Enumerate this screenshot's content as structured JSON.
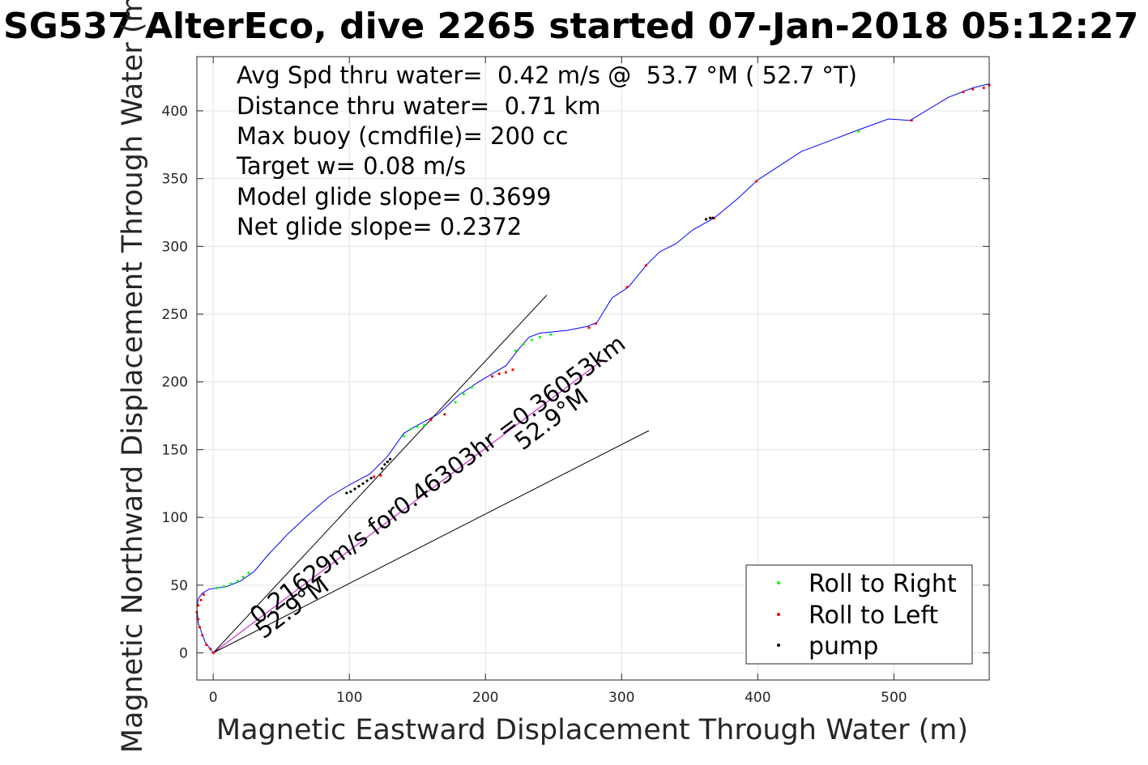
{
  "chart_data": {
    "type": "line",
    "title": "SG537 AlterEco, dive 2265 started 07-Jan-2018 05:12:27",
    "xlabel": "Magnetic Eastward Displacement Through Water (m)",
    "ylabel": "Magnetic Northward Displacement Through Water (m)",
    "xlim": [
      -12,
      570
    ],
    "ylim": [
      -20,
      440
    ],
    "xticks": [
      "0",
      "100",
      "200",
      "300",
      "400",
      "500"
    ],
    "xtick_values": [
      0,
      100,
      200,
      300,
      400,
      500
    ],
    "yticks": [
      "0",
      "50",
      "100",
      "150",
      "200",
      "250",
      "300",
      "350",
      "400"
    ],
    "ytick_values": [
      0,
      50,
      100,
      150,
      200,
      250,
      300,
      350,
      400
    ],
    "grid": true,
    "stats": [
      "Avg Spd thru water=  0.42 m/s @  53.7 °M ( 52.7 °T)",
      "Distance thru water=  0.71 km",
      "Max buoy (cmdfile)= 200 cc",
      "Target w= 0.08 m/s",
      "Model glide slope= 0.3699",
      "Net glide slope= 0.2372"
    ],
    "annotations": {
      "vector_label": "0.21629m/s for0.46303hr =0.36053km",
      "heading_label_1": "52.9°M",
      "heading_label_2": "52.9°M"
    },
    "legend": {
      "placement": "bottom-right",
      "entries": [
        {
          "label": "Roll to Right",
          "color": "#00ff00"
        },
        {
          "label": "Roll to Left",
          "color": "#ff0000"
        },
        {
          "label": "pump",
          "color": "#000000"
        }
      ]
    },
    "series": [
      {
        "color": "#0000ff",
        "style": "line",
        "x": [
          0,
          -6,
          -11,
          -12,
          -11,
          -8,
          -3,
          10,
          20,
          30,
          40,
          55,
          70,
          85,
          100,
          115,
          128,
          140,
          150,
          165,
          180,
          195,
          215,
          225,
          232,
          240,
          260,
          275,
          282,
          293,
          305,
          318,
          328,
          340,
          352,
          368,
          385,
          400,
          432,
          474,
          496,
          512,
          540,
          558,
          570
        ],
        "y": [
          0,
          8,
          22,
          33,
          40,
          44,
          47,
          49,
          53,
          60,
          72,
          88,
          102,
          115,
          124,
          132,
          145,
          162,
          168,
          176,
          190,
          200,
          212,
          225,
          233,
          236,
          238,
          241,
          244,
          262,
          270,
          286,
          296,
          302,
          312,
          321,
          335,
          349,
          370,
          386,
          394,
          393,
          410,
          417,
          420
        ]
      },
      {
        "color": "#cc00cc",
        "style": "line",
        "x": [
          0,
          286
        ],
        "y": [
          0,
          216
        ]
      },
      {
        "color": "#000000",
        "style": "line",
        "x": [
          0,
          245
        ],
        "y": [
          0,
          264
        ]
      },
      {
        "color": "#000000",
        "style": "line",
        "x": [
          0,
          320
        ],
        "y": [
          0,
          164
        ]
      }
    ],
    "markers": {
      "roll_right": {
        "color": "#00ff00",
        "x": [
          3,
          8,
          13,
          18,
          22,
          26,
          140,
          145,
          150,
          155,
          178,
          184,
          190,
          222,
          228,
          234,
          240,
          248,
          474
        ],
        "y": [
          48,
          49,
          51,
          53,
          56,
          59,
          160,
          165,
          167,
          168,
          185,
          191,
          196,
          223,
          228,
          231,
          233,
          235,
          385
        ]
      },
      "roll_left": {
        "color": "#ff0000",
        "x": [
          0,
          -2,
          -5,
          -8,
          -10,
          -11,
          -12,
          -11,
          -9,
          -7,
          118,
          123,
          160,
          170,
          205,
          210,
          215,
          220,
          276,
          281,
          304,
          318,
          368,
          399,
          513,
          551,
          558,
          566,
          570
        ],
        "y": [
          0,
          3,
          6,
          13,
          19,
          25,
          30,
          35,
          39,
          43,
          130,
          131,
          172,
          176,
          204,
          206,
          207,
          209,
          240,
          243,
          270,
          286,
          321,
          348,
          393,
          414,
          416,
          417,
          419
        ]
      },
      "pump": {
        "color": "#000000",
        "x": [
          98,
          101,
          104,
          107,
          110,
          113,
          116,
          124,
          126,
          128,
          130,
          362,
          365,
          367
        ],
        "y": [
          118,
          119,
          121,
          123,
          125,
          127,
          129,
          136,
          139,
          141,
          143,
          320,
          321,
          321
        ]
      }
    }
  }
}
